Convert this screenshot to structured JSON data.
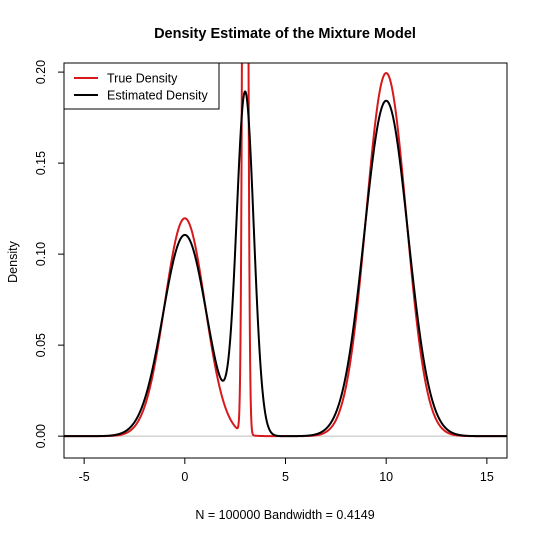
{
  "chart_data": {
    "type": "line",
    "title": "Density Estimate of the Mixture Model",
    "xlabel": "N = 100000   Bandwidth = 0.4149",
    "ylabel": "Density",
    "xlim": [
      -6,
      16
    ],
    "ylim": [
      -0.012,
      0.205
    ],
    "x_ticks": [
      -5,
      0,
      5,
      10,
      15
    ],
    "x_tick_labels": [
      "-5",
      "0",
      "5",
      "10",
      "15"
    ],
    "y_ticks": [
      0.0,
      0.05,
      0.1,
      0.15,
      0.2
    ],
    "y_tick_labels": [
      "0.00",
      "0.05",
      "0.10",
      "0.15",
      "0.20"
    ],
    "grid": false,
    "legend_position": "top-left",
    "baseline": 0,
    "series": [
      {
        "name": "True Density",
        "color": "#d7191c",
        "components": [
          {
            "mean": 0,
            "sd": 1,
            "weight": 0.3
          },
          {
            "mean": 3,
            "sd": 0.1,
            "weight": 0.2
          },
          {
            "mean": 10,
            "sd": 1,
            "weight": 0.5
          }
        ]
      },
      {
        "name": "Estimated Density",
        "color": "#000000",
        "components": [
          {
            "mean": 0,
            "sd": 1.0826,
            "weight": 0.3
          },
          {
            "mean": 3,
            "sd": 0.4268,
            "weight": 0.2
          },
          {
            "mean": 10,
            "sd": 1.0826,
            "weight": 0.5
          }
        ]
      }
    ]
  }
}
